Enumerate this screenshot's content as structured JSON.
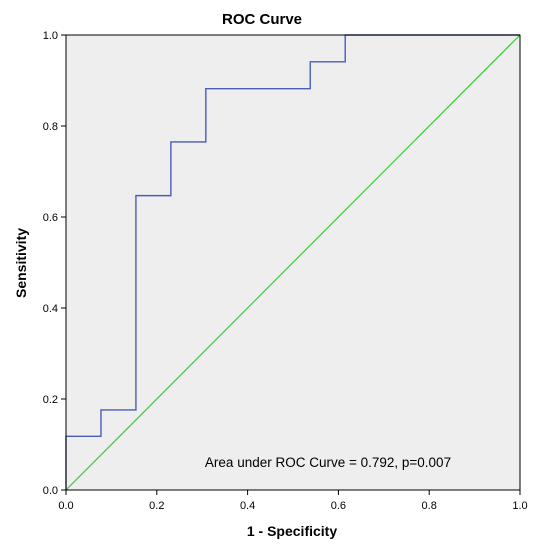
{
  "colors": {
    "background": "#ffffff",
    "plot_background": "#eeeeee",
    "roc_line": "#4a5cb8",
    "reference_line": "#33cc33",
    "axis": "#000000",
    "text": "#000000"
  },
  "chart_data": {
    "type": "line",
    "title": "ROC Curve",
    "xlabel": "1 - Specificity",
    "ylabel": "Sensitivity",
    "xlim": [
      0.0,
      1.0
    ],
    "ylim": [
      0.0,
      1.0
    ],
    "x_ticks": [
      0.0,
      0.2,
      0.4,
      0.6,
      0.8,
      1.0
    ],
    "y_ticks": [
      0.0,
      0.2,
      0.4,
      0.6,
      0.8,
      1.0
    ],
    "x_tick_labels": [
      "0.0",
      "0.2",
      "0.4",
      "0.6",
      "0.8",
      "1.0"
    ],
    "y_tick_labels": [
      "0.0",
      "0.2",
      "0.4",
      "0.6",
      "0.8",
      "1.0"
    ],
    "grid": false,
    "legend": "none",
    "series": [
      {
        "role": "roc",
        "x": [
          0.0,
          0.0,
          0.077,
          0.077,
          0.154,
          0.154,
          0.231,
          0.231,
          0.308,
          0.308,
          0.538,
          0.538,
          0.615,
          0.615,
          1.0
        ],
        "y": [
          0.0,
          0.118,
          0.118,
          0.176,
          0.176,
          0.647,
          0.647,
          0.765,
          0.765,
          0.882,
          0.882,
          0.941,
          0.941,
          1.0,
          1.0
        ]
      },
      {
        "role": "reference",
        "x": [
          0.0,
          1.0
        ],
        "y": [
          0.0,
          1.0
        ]
      }
    ],
    "annotation": "Area under ROC Curve = 0.792, p=0.007"
  }
}
